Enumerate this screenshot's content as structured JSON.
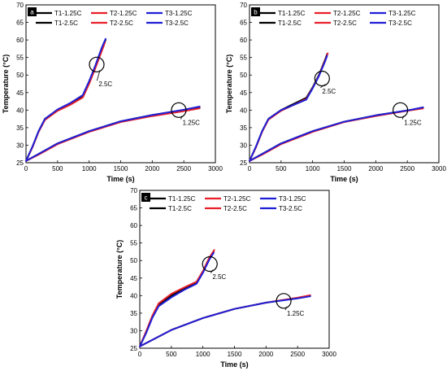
{
  "chart_data": [
    {
      "type": "line",
      "panel_label": "a",
      "xlabel": "Time (s)",
      "ylabel": "Temperature (°C)",
      "xlim": [
        0,
        3000
      ],
      "ylim": [
        25,
        70
      ],
      "xticks": [
        "0",
        "500",
        "1000",
        "1500",
        "2000",
        "2500",
        "3000"
      ],
      "yticks": [
        "25",
        "30",
        "35",
        "40",
        "45",
        "50",
        "55",
        "60",
        "65",
        "70"
      ],
      "grid": false,
      "legend_position": "top",
      "series": [
        {
          "name": "T1-1.25C",
          "color": "#000000",
          "x": [
            0,
            200,
            500,
            1000,
            1500,
            2000,
            2500,
            2750
          ],
          "y": [
            25.5,
            27.5,
            30.5,
            34.0,
            36.8,
            38.6,
            40.0,
            40.8
          ]
        },
        {
          "name": "T2-1.25C",
          "color": "#e8202a",
          "x": [
            0,
            200,
            500,
            1000,
            1500,
            2000,
            2500,
            2750
          ],
          "y": [
            25.5,
            27.3,
            30.3,
            33.8,
            36.6,
            38.3,
            39.7,
            40.5
          ]
        },
        {
          "name": "T3-1.25C",
          "color": "#1f1fd6",
          "x": [
            0,
            200,
            500,
            1000,
            1500,
            2000,
            2500,
            2750
          ],
          "y": [
            25.5,
            27.5,
            30.5,
            34.0,
            36.8,
            38.6,
            40.1,
            41.0
          ]
        },
        {
          "name": "T1-2.5C",
          "color": "#000000",
          "x": [
            0,
            100,
            200,
            300,
            500,
            700,
            900,
            1000,
            1100,
            1200,
            1260
          ],
          "y": [
            25.5,
            29.5,
            34.0,
            37.5,
            40.0,
            41.8,
            44.0,
            48.0,
            52.5,
            57.5,
            60.0
          ]
        },
        {
          "name": "T2-2.5C",
          "color": "#e8202a",
          "x": [
            0,
            100,
            200,
            300,
            500,
            700,
            900,
            1000,
            1100,
            1200,
            1250
          ],
          "y": [
            25.5,
            29.3,
            33.8,
            37.2,
            39.8,
            41.5,
            43.6,
            47.5,
            52.0,
            56.8,
            59.3
          ]
        },
        {
          "name": "T3-2.5C",
          "color": "#1f1fd6",
          "x": [
            0,
            100,
            200,
            300,
            500,
            700,
            900,
            1000,
            1100,
            1200,
            1260
          ],
          "y": [
            25.5,
            29.5,
            34.0,
            37.5,
            40.2,
            42.0,
            44.3,
            48.3,
            52.8,
            57.8,
            60.3
          ]
        }
      ],
      "annotations": [
        {
          "text": "2.5C",
          "circle_at": [
            1120,
            53
          ],
          "label_at": [
            1150,
            47
          ]
        },
        {
          "text": "1.25C",
          "circle_at": [
            2420,
            40
          ],
          "label_at": [
            2480,
            36
          ]
        }
      ]
    },
    {
      "type": "line",
      "panel_label": "b",
      "xlabel": "Time (s)",
      "ylabel": "Temperature (°C)",
      "xlim": [
        0,
        3000
      ],
      "ylim": [
        25,
        70
      ],
      "xticks": [
        "0",
        "500",
        "1000",
        "1500",
        "2000",
        "2500",
        "3000"
      ],
      "yticks": [
        "25",
        "30",
        "35",
        "40",
        "45",
        "50",
        "55",
        "60",
        "65",
        "70"
      ],
      "grid": false,
      "legend_position": "top",
      "series": [
        {
          "name": "T1-1.25C",
          "color": "#000000",
          "x": [
            0,
            200,
            500,
            1000,
            1500,
            2000,
            2500,
            2750
          ],
          "y": [
            25.5,
            27.5,
            30.5,
            34.0,
            36.7,
            38.5,
            39.9,
            40.6
          ]
        },
        {
          "name": "T2-1.25C",
          "color": "#e8202a",
          "x": [
            0,
            200,
            500,
            1000,
            1500,
            2000,
            2500,
            2750
          ],
          "y": [
            25.5,
            27.3,
            30.3,
            33.8,
            36.6,
            38.3,
            39.8,
            40.5
          ]
        },
        {
          "name": "T3-1.25C",
          "color": "#1f1fd6",
          "x": [
            0,
            200,
            500,
            1000,
            1500,
            2000,
            2500,
            2750
          ],
          "y": [
            25.5,
            27.5,
            30.5,
            34.0,
            36.7,
            38.5,
            39.9,
            40.8
          ]
        },
        {
          "name": "T1-2.5C",
          "color": "#000000",
          "x": [
            0,
            100,
            200,
            300,
            500,
            700,
            900,
            1000,
            1100,
            1200,
            1230
          ],
          "y": [
            25.5,
            29.5,
            34.0,
            37.5,
            40.0,
            41.8,
            43.5,
            46.5,
            50.0,
            54.5,
            56.0
          ]
        },
        {
          "name": "T2-2.5C",
          "color": "#e8202a",
          "x": [
            0,
            100,
            200,
            300,
            500,
            700,
            900,
            1000,
            1100,
            1200,
            1240
          ],
          "y": [
            25.5,
            29.3,
            33.8,
            37.3,
            39.8,
            41.5,
            43.2,
            46.3,
            49.8,
            54.3,
            56.2
          ]
        },
        {
          "name": "T3-2.5C",
          "color": "#1f1fd6",
          "x": [
            0,
            100,
            200,
            300,
            500,
            700,
            900,
            1000,
            1100,
            1200,
            1230
          ],
          "y": [
            25.5,
            29.5,
            34.0,
            37.5,
            40.0,
            41.5,
            43.0,
            46.2,
            49.7,
            54.0,
            55.5
          ]
        }
      ],
      "annotations": [
        {
          "text": "2.5C",
          "circle_at": [
            1150,
            49
          ],
          "label_at": [
            1150,
            45
          ]
        },
        {
          "text": "1.25C",
          "circle_at": [
            2390,
            40
          ],
          "label_at": [
            2450,
            36
          ]
        }
      ]
    },
    {
      "type": "line",
      "panel_label": "c",
      "xlabel": "Time (s)",
      "ylabel": "Temperature (°C)",
      "xlim": [
        0,
        3000
      ],
      "ylim": [
        25,
        70
      ],
      "xticks": [
        "0",
        "500",
        "1000",
        "1500",
        "2000",
        "2500",
        "3000"
      ],
      "yticks": [
        "25",
        "30",
        "35",
        "40",
        "45",
        "50",
        "55",
        "60",
        "65",
        "70"
      ],
      "grid": false,
      "legend_position": "top",
      "series": [
        {
          "name": "T1-1.25C",
          "color": "#000000",
          "x": [
            0,
            200,
            500,
            1000,
            1500,
            2000,
            2500,
            2700
          ],
          "y": [
            25.5,
            27.4,
            30.2,
            33.6,
            36.2,
            38.0,
            39.3,
            40.0
          ]
        },
        {
          "name": "T2-1.25C",
          "color": "#e8202a",
          "x": [
            0,
            200,
            500,
            1000,
            1500,
            2000,
            2500,
            2700
          ],
          "y": [
            25.5,
            27.4,
            30.2,
            33.6,
            36.2,
            38.0,
            39.4,
            40.1
          ]
        },
        {
          "name": "T3-1.25C",
          "color": "#1f1fd6",
          "x": [
            0,
            200,
            500,
            1000,
            1500,
            2000,
            2500,
            2700
          ],
          "y": [
            25.5,
            27.4,
            30.2,
            33.6,
            36.2,
            38.0,
            39.2,
            39.8
          ]
        },
        {
          "name": "T1-2.5C",
          "color": "#000000",
          "x": [
            0,
            100,
            200,
            300,
            500,
            700,
            900,
            1000,
            1100,
            1170
          ],
          "y": [
            25.5,
            29.5,
            34.0,
            37.5,
            40.0,
            42.0,
            43.8,
            46.8,
            50.5,
            52.5
          ]
        },
        {
          "name": "T2-2.5C",
          "color": "#e8202a",
          "x": [
            0,
            100,
            200,
            300,
            500,
            700,
            900,
            1000,
            1100,
            1180
          ],
          "y": [
            25.5,
            29.8,
            34.3,
            37.8,
            40.5,
            42.3,
            44.0,
            47.0,
            50.8,
            53.0
          ]
        },
        {
          "name": "T3-2.5C",
          "color": "#1f1fd6",
          "x": [
            0,
            100,
            200,
            300,
            500,
            700,
            900,
            1000,
            1100,
            1170
          ],
          "y": [
            25.5,
            29.3,
            33.7,
            37.0,
            39.5,
            41.6,
            43.4,
            46.5,
            50.2,
            52.2
          ]
        }
      ],
      "annotations": [
        {
          "text": "2.5C",
          "circle_at": [
            1110,
            49
          ],
          "label_at": [
            1150,
            45
          ]
        },
        {
          "text": "1.25C",
          "circle_at": [
            2280,
            38.5
          ],
          "label_at": [
            2330,
            34.5
          ]
        }
      ]
    }
  ]
}
